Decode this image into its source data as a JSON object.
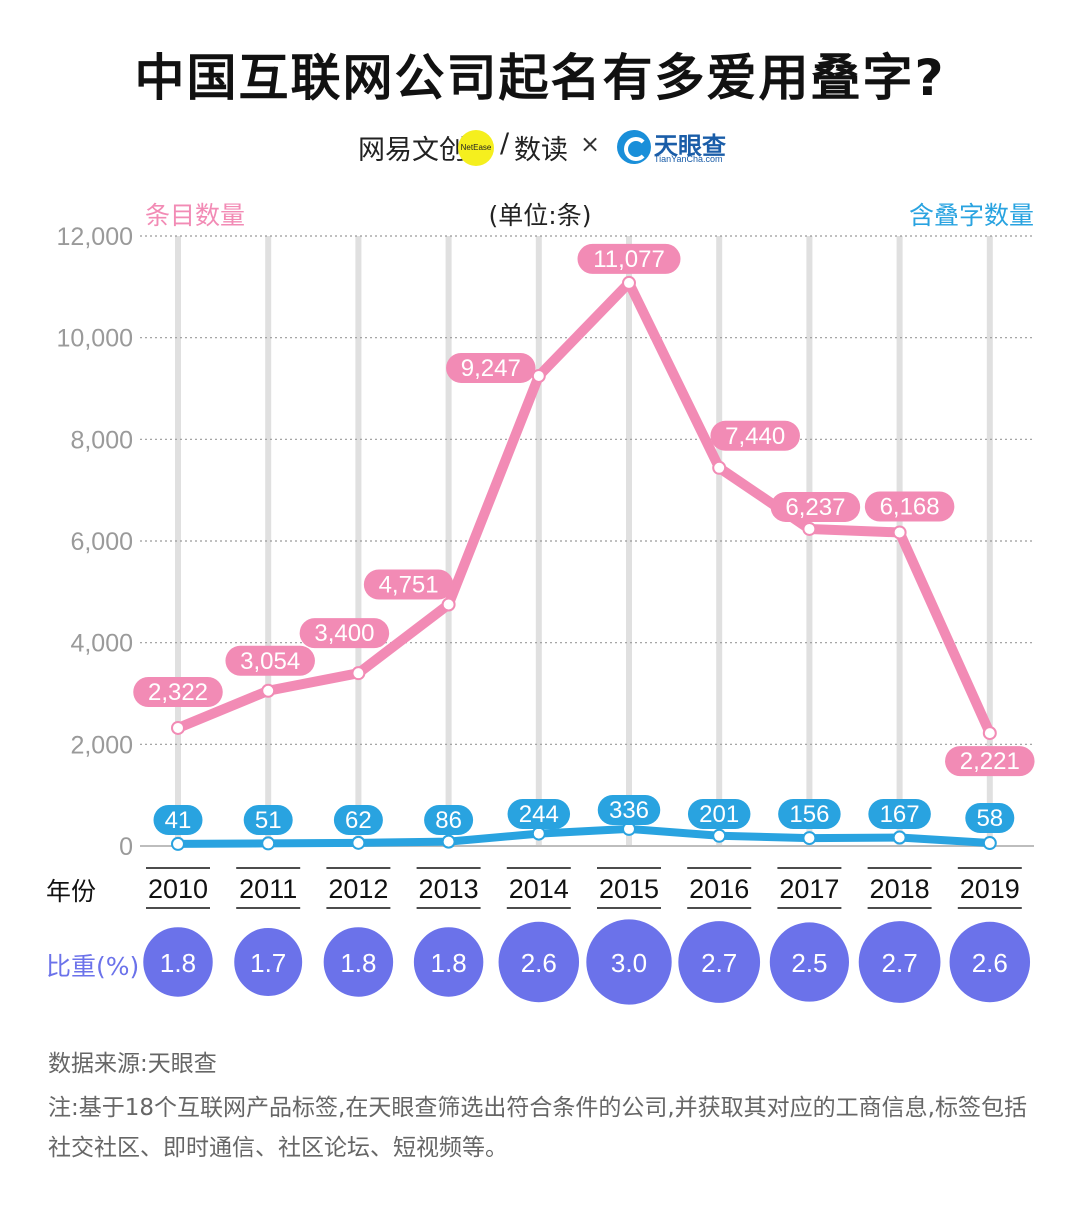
{
  "title": "中国互联网公司起名有多爱用叠字?",
  "brand": {
    "netease": "网易文创",
    "netease_dot": "NetEase",
    "slash": "/",
    "shudu": "数读",
    "times": "×",
    "tianyancha": "天眼查",
    "tianyancha_sub": "TianYanCha.com"
  },
  "chart_data": {
    "type": "line",
    "unit_label": "(单位:条)",
    "row_label_year": "年份",
    "row_label_ratio": "比重(%)",
    "x": [
      "2010",
      "2011",
      "2012",
      "2013",
      "2014",
      "2015",
      "2016",
      "2017",
      "2018",
      "2019"
    ],
    "ylim": [
      0,
      12000
    ],
    "yticks": [
      "0",
      "2,000",
      "4,000",
      "6,000",
      "8,000",
      "10,000",
      "12,000"
    ],
    "ytick_values": [
      0,
      2000,
      4000,
      6000,
      8000,
      10000,
      12000
    ],
    "grid": true,
    "series": [
      {
        "name": "条目数量",
        "color": "#f28bb5",
        "values": [
          2322,
          3054,
          3400,
          4751,
          9247,
          11077,
          7440,
          6237,
          6168,
          2221
        ],
        "labels": [
          "2,322",
          "3,054",
          "3,400",
          "4,751",
          "9,247",
          "11,077",
          "7,440",
          "6,237",
          "6,168",
          "2,221"
        ]
      },
      {
        "name": "含叠字数量",
        "color": "#29a3e0",
        "values": [
          41,
          51,
          62,
          86,
          244,
          336,
          201,
          156,
          167,
          58
        ],
        "labels": [
          "41",
          "51",
          "62",
          "86",
          "244",
          "336",
          "201",
          "156",
          "167",
          "58"
        ]
      }
    ],
    "ratio": {
      "color": "#6b72ea",
      "values": [
        1.8,
        1.7,
        1.8,
        1.8,
        2.6,
        3.0,
        2.7,
        2.5,
        2.7,
        2.6
      ],
      "labels": [
        "1.8",
        "1.7",
        "1.8",
        "1.8",
        "2.6",
        "3.0",
        "2.7",
        "2.5",
        "2.7",
        "2.6"
      ]
    }
  },
  "footer": {
    "source": "数据来源:天眼查",
    "note": "注:基于18个互联网产品标签,在天眼查筛选出符合条件的公司,并获取其对应的工商信息,标签包括社交社区、即时通信、社区论坛、短视频等。"
  }
}
